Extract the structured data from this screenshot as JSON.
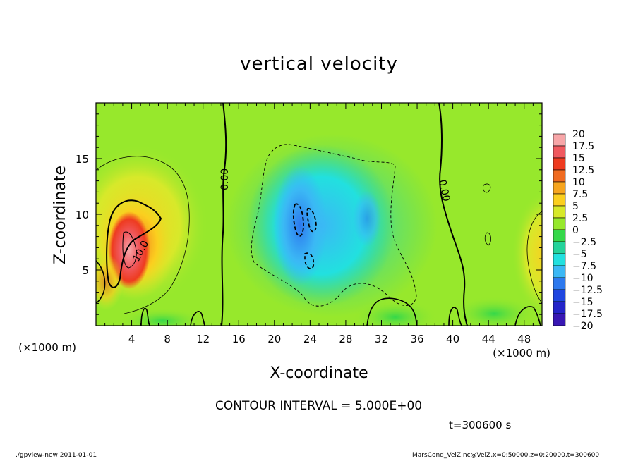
{
  "chart_data": {
    "type": "heatmap",
    "title": "vertical velocity",
    "xlabel": "X-coordinate",
    "ylabel": "Z-coordinate",
    "x_unit_label": "(×1000 m)",
    "y_unit_label": "(×1000 m)",
    "xlim": [
      0,
      50
    ],
    "ylim": [
      0,
      20
    ],
    "x_ticks": [
      4,
      8,
      12,
      16,
      20,
      24,
      28,
      32,
      36,
      40,
      44,
      48
    ],
    "y_ticks": [
      5,
      10,
      15
    ],
    "colorbar": {
      "levels": [
        "20",
        "17.5",
        "15",
        "12.5",
        "10",
        "7.5",
        "5",
        "2.5",
        "0",
        "−2.5",
        "−5",
        "−7.5",
        "−10",
        "−12.5",
        "−15",
        "−17.5",
        "−20"
      ],
      "colors": [
        "#f7a6a8",
        "#f0595f",
        "#ee3b20",
        "#f06b20",
        "#f7a51e",
        "#fbcf1f",
        "#d7e92a",
        "#97e82c",
        "#35d84a",
        "#24d39a",
        "#22e0df",
        "#3bb8f5",
        "#2d79ee",
        "#1f46e0",
        "#2424c9",
        "#3817b3",
        "#6d20b8"
      ]
    },
    "contour_labels": [
      "0.00",
      "0.00",
      "10.0"
    ],
    "contour_interval_text": "CONTOUR INTERVAL = 5.000E+00",
    "features": [
      {
        "name": "updraft",
        "x": 3.2,
        "z": 7.2,
        "peak_value": 20
      },
      {
        "name": "downdraft",
        "x": 22.8,
        "z": 8.5,
        "peak_value": -12
      }
    ]
  },
  "annotations": {
    "contour_interval": "CONTOUR INTERVAL = 5.000E+00",
    "time": "t=300600 s",
    "footer_left": "./gpview-new   2011-01-01",
    "footer_right": "MarsCond_VelZ.nc@VelZ,x=0:50000,z=0:20000,t=300600"
  }
}
